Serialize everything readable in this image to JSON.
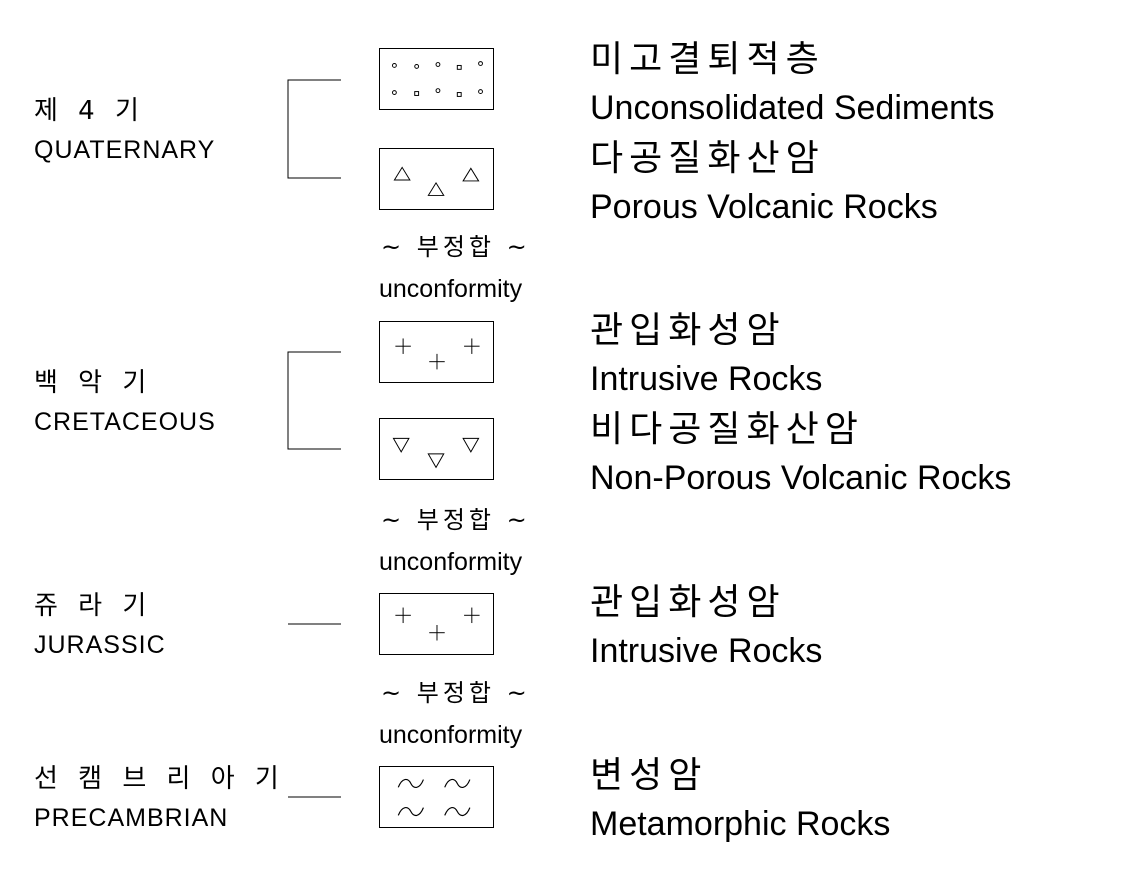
{
  "periods": [
    {
      "ko": "제 4 기",
      "en": "QUATERNARY"
    },
    {
      "ko": "백 악 기",
      "en": "CRETACEOUS"
    },
    {
      "ko": "쥬 라 기",
      "en": "JURASSIC"
    },
    {
      "ko": "선 캠 브 리 아 기",
      "en": "PRECAMBRIAN"
    }
  ],
  "rocks": [
    {
      "ko": "미고결퇴적층",
      "en": "Unconsolidated Sediments",
      "symbol": "dots-icon"
    },
    {
      "ko": "다공질화산암",
      "en": "Porous Volcanic Rocks",
      "symbol": "triangle-up-icon"
    },
    {
      "ko": "관입화성암",
      "en": "Intrusive Rocks",
      "symbol": "plus-icon"
    },
    {
      "ko": "비다공질화산암",
      "en": "Non-Porous Volcanic Rocks",
      "symbol": "triangle-down-icon"
    },
    {
      "ko": "관입화성암",
      "en": "Intrusive Rocks",
      "symbol": "plus-icon"
    },
    {
      "ko": "변성암",
      "en": "Metamorphic Rocks",
      "symbol": "wave-icon"
    }
  ],
  "unconformities": [
    {
      "ko": "~ 부정합 ~",
      "en": "unconformity"
    },
    {
      "ko": "~ 부정합 ~",
      "en": "unconformity"
    },
    {
      "ko": "~ 부정합 ~",
      "en": "unconformity"
    }
  ]
}
